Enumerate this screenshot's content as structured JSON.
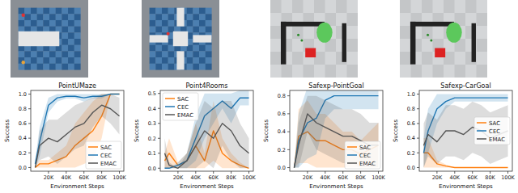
{
  "chart_data": [
    {
      "type": "line",
      "title": "PointUMaze",
      "x_label": "Environment Steps",
      "y_label": "Success",
      "x": [
        5000,
        10000,
        20000,
        30000,
        40000,
        50000,
        60000,
        70000,
        80000,
        90000,
        100000
      ],
      "xlim": [
        0,
        105000
      ],
      "xticks": [
        {
          "value": 20000,
          "label": "20K"
        },
        {
          "value": 40000,
          "label": "40K"
        },
        {
          "value": 60000,
          "label": "60K"
        },
        {
          "value": 80000,
          "label": "80K"
        },
        {
          "value": 100000,
          "label": "100K"
        }
      ],
      "ylim": [
        -0.05,
        1.05
      ],
      "yticks": [
        {
          "value": 0,
          "label": "0.0"
        },
        {
          "value": 0.2,
          "label": "0.2"
        },
        {
          "value": 0.4,
          "label": "0.4"
        },
        {
          "value": 0.6,
          "label": "0.6"
        },
        {
          "value": 0.8,
          "label": "0.8"
        },
        {
          "value": 1,
          "label": "1.0"
        }
      ],
      "grid": false,
      "legend": "lower right",
      "series": [
        {
          "name": "SAC",
          "color": "#ff7f0e",
          "values": [
            0.0,
            0.05,
            0.05,
            0.1,
            0.15,
            0.3,
            0.4,
            0.5,
            0.7,
            1.0,
            1.0
          ],
          "errors": [
            0,
            0.05,
            0.05,
            0.1,
            0.15,
            0.3,
            0.35,
            0.4,
            0.3,
            0,
            0
          ]
        },
        {
          "name": "CEC",
          "color": "#1f77b4",
          "values": [
            0.05,
            0.35,
            0.85,
            0.95,
            0.97,
            0.97,
            0.95,
            0.97,
            0.97,
            1.0,
            1.0
          ],
          "errors": [
            0.05,
            0.2,
            0.1,
            0.05,
            0.03,
            0.03,
            0.05,
            0.03,
            0.03,
            0,
            0
          ]
        },
        {
          "name": "EMAC",
          "color": "#555555",
          "values": [
            0.0,
            0.3,
            0.4,
            0.35,
            0.45,
            0.55,
            0.6,
            0.75,
            0.85,
            0.8,
            0.7
          ],
          "errors": [
            0,
            0.2,
            0.25,
            0.3,
            0.3,
            0.3,
            0.3,
            0.2,
            0.15,
            0.2,
            0.25
          ]
        }
      ]
    },
    {
      "type": "line",
      "title": "Point4Rooms",
      "x_label": "Environment Steps",
      "y_label": "Success",
      "x": [
        5000,
        10000,
        20000,
        30000,
        40000,
        50000,
        60000,
        70000,
        80000,
        90000,
        100000
      ],
      "xlim": [
        0,
        105000
      ],
      "xticks": [
        {
          "value": 20000,
          "label": "20K"
        },
        {
          "value": 40000,
          "label": "40K"
        },
        {
          "value": 60000,
          "label": "60K"
        },
        {
          "value": 80000,
          "label": "80K"
        },
        {
          "value": 100000,
          "label": "100K"
        }
      ],
      "ylim": [
        -0.02,
        0.52
      ],
      "yticks": [
        {
          "value": 0,
          "label": "0.0"
        },
        {
          "value": 0.1,
          "label": "0.1"
        },
        {
          "value": 0.2,
          "label": "0.2"
        },
        {
          "value": 0.3,
          "label": "0.3"
        },
        {
          "value": 0.4,
          "label": "0.4"
        },
        {
          "value": 0.5,
          "label": "0.5"
        }
      ],
      "grid": false,
      "legend": "upper left",
      "series": [
        {
          "name": "SAC",
          "color": "#ff7f0e",
          "values": [
            0.05,
            0.1,
            0.02,
            0.05,
            0.15,
            0.05,
            0.25,
            0.1,
            0.05,
            0.02,
            0.0
          ],
          "errors": [
            0.05,
            0.1,
            0.02,
            0.05,
            0.15,
            0.05,
            0.2,
            0.1,
            0.05,
            0.02,
            0
          ]
        },
        {
          "name": "CEC",
          "color": "#1f77b4",
          "values": [
            0.0,
            0.0,
            0.02,
            0.05,
            0.2,
            0.35,
            0.4,
            0.45,
            0.4,
            0.47,
            0.47
          ],
          "errors": [
            0,
            0,
            0.02,
            0.05,
            0.15,
            0.15,
            0.1,
            0.05,
            0.1,
            0.05,
            0.05
          ]
        },
        {
          "name": "EMAC",
          "color": "#555555",
          "values": [
            0.1,
            0.02,
            0.0,
            0.05,
            0.15,
            0.25,
            0.2,
            0.3,
            0.25,
            0.15,
            0.1
          ],
          "errors": [
            0.1,
            0.02,
            0,
            0.05,
            0.15,
            0.2,
            0.2,
            0.15,
            0.2,
            0.15,
            0.1
          ]
        }
      ]
    },
    {
      "type": "line",
      "title": "Safexp-PointGoal",
      "x_label": "Environment Steps",
      "y_label": "Success",
      "x": [
        5000,
        10000,
        20000,
        30000,
        40000,
        50000,
        60000,
        70000,
        80000,
        90000,
        100000
      ],
      "xlim": [
        0,
        105000
      ],
      "xticks": [
        {
          "value": 20000,
          "label": "20K"
        },
        {
          "value": 40000,
          "label": "40K"
        },
        {
          "value": 60000,
          "label": "60K"
        },
        {
          "value": 80000,
          "label": "80K"
        },
        {
          "value": 100000,
          "label": "100K"
        }
      ],
      "ylim": [
        -0.04,
        0.86
      ],
      "yticks": [
        {
          "value": 0,
          "label": "0.0"
        },
        {
          "value": 0.2,
          "label": "0.2"
        },
        {
          "value": 0.4,
          "label": "0.4"
        },
        {
          "value": 0.6,
          "label": "0.6"
        },
        {
          "value": 0.8,
          "label": "0.8"
        }
      ],
      "grid": false,
      "legend": "lower right",
      "series": [
        {
          "name": "SAC",
          "color": "#ff7f0e",
          "values": [
            0.0,
            0.35,
            0.4,
            0.3,
            0.3,
            0.25,
            0.2,
            0.2,
            0.15,
            0.2,
            0.25
          ],
          "errors": [
            0,
            0.3,
            0.35,
            0.3,
            0.3,
            0.25,
            0.2,
            0.2,
            0.15,
            0.2,
            0.25
          ]
        },
        {
          "name": "CEC",
          "color": "#1f77b4",
          "values": [
            0.0,
            0.3,
            0.5,
            0.55,
            0.75,
            0.8,
            0.8,
            0.8,
            0.8,
            0.8,
            0.8
          ],
          "errors": [
            0,
            0.3,
            0.4,
            0.4,
            0.2,
            0.15,
            0.15,
            0.15,
            0.15,
            0.15,
            0.15
          ]
        },
        {
          "name": "EMAC",
          "color": "#555555",
          "values": [
            0.0,
            0.25,
            0.6,
            0.5,
            0.45,
            0.4,
            0.35,
            0.35,
            0.3,
            0.25,
            0.25
          ],
          "errors": [
            0,
            0.25,
            0.2,
            0.3,
            0.3,
            0.3,
            0.3,
            0.3,
            0.3,
            0.25,
            0.25
          ]
        }
      ]
    },
    {
      "type": "line",
      "title": "Safexp-CarGoal",
      "x_label": "Environment Steps",
      "y_label": "Success",
      "x": [
        5000,
        10000,
        20000,
        30000,
        40000,
        50000,
        60000,
        70000,
        80000,
        90000,
        100000
      ],
      "xlim": [
        0,
        105000
      ],
      "xticks": [
        {
          "value": 20000,
          "label": "20K"
        },
        {
          "value": 40000,
          "label": "40K"
        },
        {
          "value": 60000,
          "label": "60K"
        },
        {
          "value": 80000,
          "label": "80K"
        },
        {
          "value": 100000,
          "label": "100K"
        }
      ],
      "ylim": [
        -0.05,
        1.05
      ],
      "yticks": [
        {
          "value": 0,
          "label": "0.0"
        },
        {
          "value": 0.2,
          "label": "0.2"
        },
        {
          "value": 0.4,
          "label": "0.4"
        },
        {
          "value": 0.6,
          "label": "0.6"
        },
        {
          "value": 0.8,
          "label": "0.8"
        },
        {
          "value": 1,
          "label": "1.0"
        }
      ],
      "grid": false,
      "legend": "right",
      "series": [
        {
          "name": "SAC",
          "color": "#ff7f0e",
          "values": [
            0.2,
            0.2,
            0.05,
            0.02,
            0.0,
            0.0,
            0.0,
            0.0,
            0.0,
            0.0,
            0.0
          ],
          "errors": [
            0.2,
            0.2,
            0.05,
            0.02,
            0,
            0,
            0,
            0,
            0,
            0,
            0
          ]
        },
        {
          "name": "CEC",
          "color": "#1f77b4",
          "values": [
            0.2,
            0.5,
            0.8,
            0.9,
            0.95,
            0.95,
            0.95,
            0.95,
            0.95,
            0.95,
            0.95
          ],
          "errors": [
            0.2,
            0.3,
            0.2,
            0.1,
            0.05,
            0.05,
            0.05,
            0.05,
            0.05,
            0.05,
            0.05
          ]
        },
        {
          "name": "EMAC",
          "color": "#555555",
          "values": [
            0.3,
            0.45,
            0.35,
            0.5,
            0.5,
            0.45,
            0.55,
            0.5,
            0.4,
            0.45,
            0.5
          ],
          "errors": [
            0.3,
            0.3,
            0.3,
            0.35,
            0.35,
            0.35,
            0.35,
            0.35,
            0.35,
            0.35,
            0.35
          ]
        }
      ]
    }
  ]
}
